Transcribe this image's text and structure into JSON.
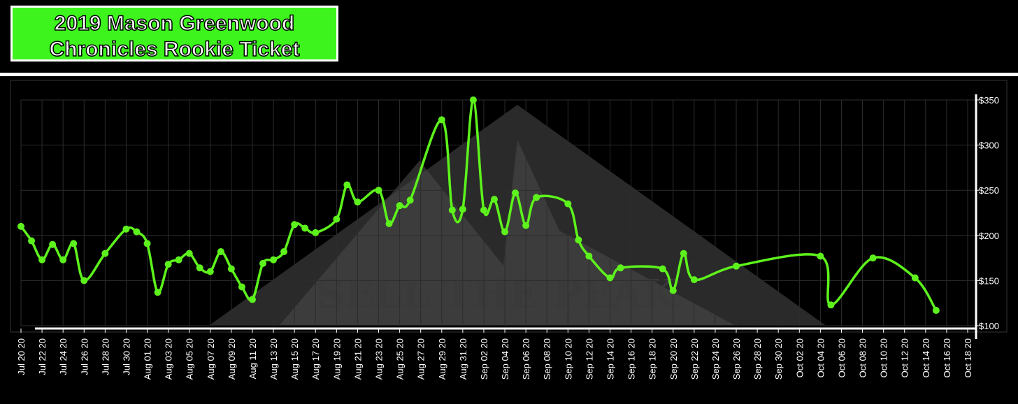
{
  "chart_data": {
    "type": "line",
    "title": "2019 Mason Greenwood Chronicles Rookie Ticket",
    "watermark": "SELL THE PEAK",
    "x": [
      "2020-07-20",
      "2020-07-21",
      "2020-07-22",
      "2020-07-23",
      "2020-07-24",
      "2020-07-25",
      "2020-07-26",
      "2020-07-28",
      "2020-07-30",
      "2020-07-31",
      "2020-08-01",
      "2020-08-02",
      "2020-08-03",
      "2020-08-04",
      "2020-08-05",
      "2020-08-06",
      "2020-08-07",
      "2020-08-08",
      "2020-08-09",
      "2020-08-10",
      "2020-08-11",
      "2020-08-12",
      "2020-08-13",
      "2020-08-14",
      "2020-08-15",
      "2020-08-16",
      "2020-08-17",
      "2020-08-19",
      "2020-08-20",
      "2020-08-21",
      "2020-08-23",
      "2020-08-24",
      "2020-08-25",
      "2020-08-26",
      "2020-08-29",
      "2020-08-30",
      "2020-08-31",
      "2020-09-01",
      "2020-09-02",
      "2020-09-03",
      "2020-09-04",
      "2020-09-05",
      "2020-09-06",
      "2020-09-07",
      "2020-09-10",
      "2020-09-11",
      "2020-09-12",
      "2020-09-14",
      "2020-09-15",
      "2020-09-19",
      "2020-09-20",
      "2020-09-21",
      "2020-09-22",
      "2020-09-26",
      "2020-10-04",
      "2020-10-05",
      "2020-10-09",
      "2020-10-13",
      "2020-10-15"
    ],
    "series": [
      {
        "color": "#5df21c",
        "values": [
          210,
          194,
          173,
          190,
          173,
          191,
          150,
          180,
          207,
          204,
          191,
          137,
          168,
          173,
          180,
          164,
          160,
          182,
          163,
          143,
          129,
          169,
          173,
          182,
          212,
          208,
          203,
          218,
          256,
          237,
          250,
          213,
          233,
          239,
          328,
          228,
          229,
          350,
          228,
          240,
          204,
          247,
          211,
          242,
          235,
          195,
          177,
          153,
          164,
          163,
          139,
          180,
          151,
          166,
          177,
          123,
          175,
          153,
          117
        ]
      }
    ],
    "xlim": [
      "2020-07-20",
      "2020-10-18"
    ],
    "xticks": [
      {
        "value": "2020-07-20",
        "label": "Jul 20 20"
      },
      {
        "value": "2020-07-22",
        "label": "Jul 22 20"
      },
      {
        "value": "2020-07-24",
        "label": "Jul 24 20"
      },
      {
        "value": "2020-07-26",
        "label": "Jul 26 20"
      },
      {
        "value": "2020-07-28",
        "label": "Jul 28 20"
      },
      {
        "value": "2020-07-30",
        "label": "Jul 30 20"
      },
      {
        "value": "2020-08-01",
        "label": "Aug 01 20"
      },
      {
        "value": "2020-08-03",
        "label": "Aug 03 20"
      },
      {
        "value": "2020-08-05",
        "label": "Aug 05 20"
      },
      {
        "value": "2020-08-07",
        "label": "Aug 07 20"
      },
      {
        "value": "2020-08-09",
        "label": "Aug 09 20"
      },
      {
        "value": "2020-08-11",
        "label": "Aug 11 20"
      },
      {
        "value": "2020-08-13",
        "label": "Aug 13 20"
      },
      {
        "value": "2020-08-15",
        "label": "Aug 15 20"
      },
      {
        "value": "2020-08-17",
        "label": "Aug 17 20"
      },
      {
        "value": "2020-08-19",
        "label": "Aug 19 20"
      },
      {
        "value": "2020-08-21",
        "label": "Aug 21 20"
      },
      {
        "value": "2020-08-23",
        "label": "Aug 23 20"
      },
      {
        "value": "2020-08-25",
        "label": "Aug 25 20"
      },
      {
        "value": "2020-08-27",
        "label": "Aug 27 20"
      },
      {
        "value": "2020-08-29",
        "label": "Aug 29 20"
      },
      {
        "value": "2020-08-31",
        "label": "Aug 31 20"
      },
      {
        "value": "2020-09-02",
        "label": "Sep 02 20"
      },
      {
        "value": "2020-09-04",
        "label": "Sep 04 20"
      },
      {
        "value": "2020-09-06",
        "label": "Sep 06 20"
      },
      {
        "value": "2020-09-08",
        "label": "Sep 08 20"
      },
      {
        "value": "2020-09-10",
        "label": "Sep 10 20"
      },
      {
        "value": "2020-09-12",
        "label": "Sep 12 20"
      },
      {
        "value": "2020-09-14",
        "label": "Sep 14 20"
      },
      {
        "value": "2020-09-16",
        "label": "Sep 16 20"
      },
      {
        "value": "2020-09-18",
        "label": "Sep 18 20"
      },
      {
        "value": "2020-09-20",
        "label": "Sep 20 20"
      },
      {
        "value": "2020-09-22",
        "label": "Sep 22 20"
      },
      {
        "value": "2020-09-24",
        "label": "Sep 24 20"
      },
      {
        "value": "2020-09-26",
        "label": "Sep 26 20"
      },
      {
        "value": "2020-09-28",
        "label": "Sep 28 20"
      },
      {
        "value": "2020-09-30",
        "label": "Sep 30 20"
      },
      {
        "value": "2020-10-02",
        "label": "Oct 02 20"
      },
      {
        "value": "2020-10-04",
        "label": "Oct 04 20"
      },
      {
        "value": "2020-10-06",
        "label": "Oct 06 20"
      },
      {
        "value": "2020-10-08",
        "label": "Oct 08 20"
      },
      {
        "value": "2020-10-10",
        "label": "Oct 10 20"
      },
      {
        "value": "2020-10-12",
        "label": "Oct 12 20"
      },
      {
        "value": "2020-10-14",
        "label": "Oct 14 20"
      },
      {
        "value": "2020-10-16",
        "label": "Oct 16 20"
      },
      {
        "value": "2020-10-18",
        "label": "Oct 18 20"
      }
    ],
    "ylim": [
      100,
      350
    ],
    "yticks": [
      {
        "value": 100,
        "label": "$100"
      },
      {
        "value": 150,
        "label": "$150"
      },
      {
        "value": 200,
        "label": "$200"
      },
      {
        "value": 250,
        "label": "$250"
      },
      {
        "value": 300,
        "label": "$300"
      },
      {
        "value": 350,
        "label": "$350"
      }
    ],
    "grid": true
  }
}
